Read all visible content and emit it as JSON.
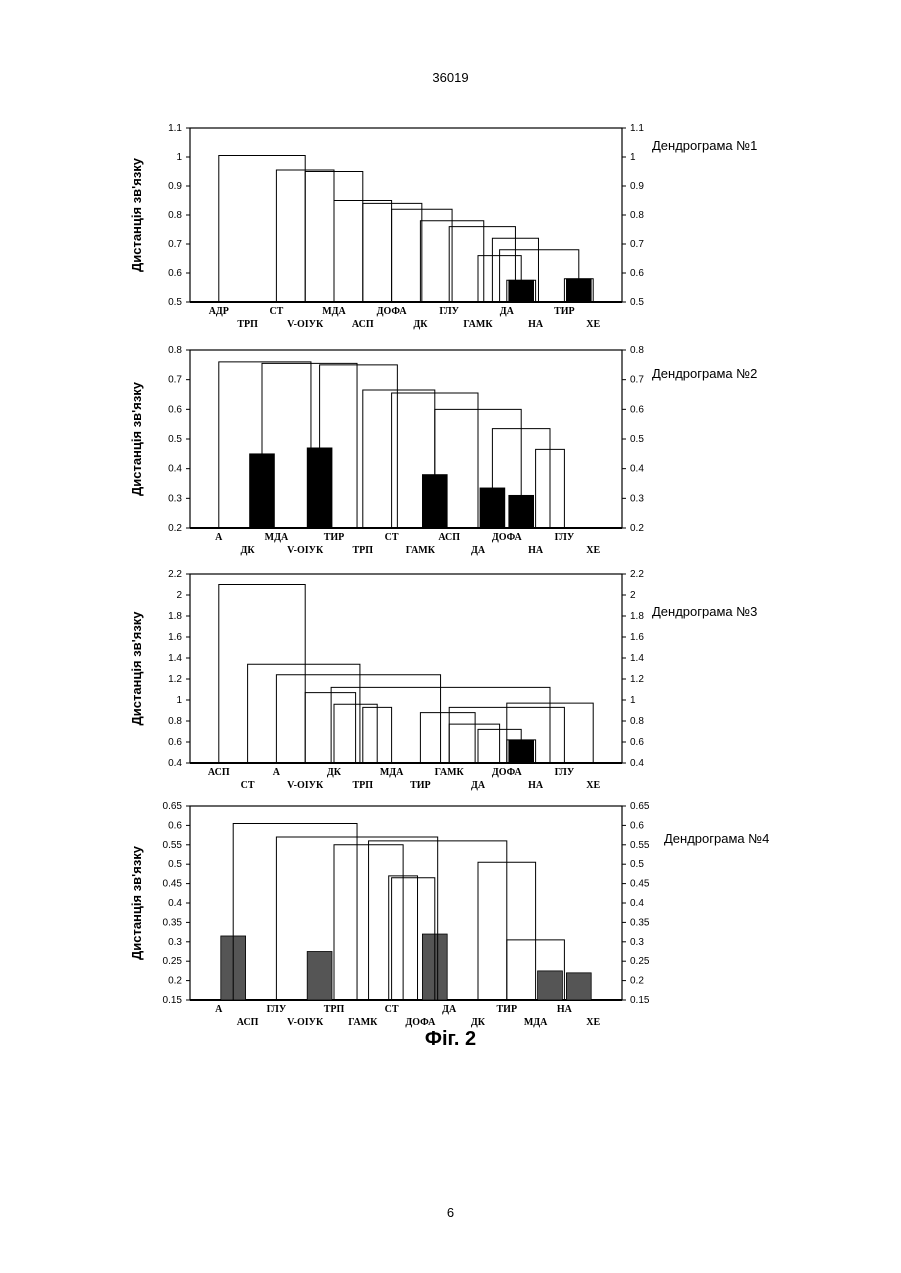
{
  "page": {
    "number_top": "36019",
    "number_bottom": "6",
    "figure_caption": "Фіг. 2"
  },
  "colors": {
    "axes": "#000000",
    "dark_bar": "#000000",
    "gray_bar": "#555555",
    "background": "#ffffff"
  },
  "chart_data": [
    {
      "type": "dendrogram",
      "title": "Дендрограма №1",
      "ylabel": "Дистанція зв'язку",
      "ylim": [
        0.5,
        1.1
      ],
      "yticks": [
        "0.5",
        "0.6",
        "0.7",
        "0.8",
        "0.9",
        "1",
        "1.1"
      ],
      "leaves": [
        "АДР",
        "ТРП",
        "СТ",
        "V-OIУК",
        "МДА",
        "АСП",
        "ДОФА",
        "ДК",
        "ГЛУ",
        "ГАМК",
        "ДА",
        "НА",
        "ТИР",
        "ХЕ"
      ],
      "filled_bars": [
        {
          "from": 11,
          "to": 12,
          "height": 0.575
        },
        {
          "from": 13,
          "to": 14,
          "height": 0.58
        }
      ],
      "merges": [
        {
          "a": 11,
          "b": 12,
          "height": 0.575
        },
        {
          "a": 13,
          "b": 14,
          "height": 0.58
        },
        {
          "a": 10,
          "b": 11.5,
          "height": 0.66
        },
        {
          "a": 10.75,
          "b": 13.5,
          "height": 0.68
        },
        {
          "a": 10.5,
          "b": 12.1,
          "height": 0.72
        },
        {
          "a": 9,
          "b": 11.3,
          "height": 0.76
        },
        {
          "a": 8,
          "b": 10.2,
          "height": 0.78
        },
        {
          "a": 7,
          "b": 9.1,
          "height": 0.82
        },
        {
          "a": 6,
          "b": 8.05,
          "height": 0.84
        },
        {
          "a": 5,
          "b": 7.0,
          "height": 0.85
        },
        {
          "a": 4,
          "b": 6.0,
          "height": 0.95
        },
        {
          "a": 3,
          "b": 5.0,
          "height": 0.955
        },
        {
          "a": 1,
          "b": 4.0,
          "height": 1.005
        }
      ]
    },
    {
      "type": "dendrogram",
      "title": "Дендрограма №2",
      "ylabel": "Дистанція зв'язку",
      "ylim": [
        0.2,
        0.8
      ],
      "yticks": [
        "0.2",
        "0.3",
        "0.4",
        "0.5",
        "0.6",
        "0.7",
        "0.8"
      ],
      "leaves": [
        "А",
        "ДК",
        "МДА",
        "V-OIУК",
        "ТИР",
        "ТРП",
        "СТ",
        "ГАМК",
        "АСП",
        "ДА",
        "ДОФА",
        "НА",
        "ГЛУ",
        "ХЕ"
      ],
      "filled_bars": [
        {
          "from": 2,
          "to": 3,
          "height": 0.45
        },
        {
          "from": 4,
          "to": 5,
          "height": 0.47
        },
        {
          "from": 8,
          "to": 9,
          "height": 0.38
        },
        {
          "from": 10,
          "to": 11,
          "height": 0.335
        },
        {
          "from": 11,
          "to": 12,
          "height": 0.31
        }
      ],
      "merges": [
        {
          "a": 12,
          "b": 13,
          "height": 0.465
        },
        {
          "a": 10.5,
          "b": 12.5,
          "height": 0.535
        },
        {
          "a": 8.5,
          "b": 11.5,
          "height": 0.6
        },
        {
          "a": 7,
          "b": 10.0,
          "height": 0.655
        },
        {
          "a": 6,
          "b": 8.5,
          "height": 0.665
        },
        {
          "a": 4.5,
          "b": 7.2,
          "height": 0.75
        },
        {
          "a": 2.5,
          "b": 5.8,
          "height": 0.755
        },
        {
          "a": 1,
          "b": 4.2,
          "height": 0.76
        }
      ]
    },
    {
      "type": "dendrogram",
      "title": "Дендрограма №3",
      "ylabel": "Дистанція зв'язку",
      "ylim": [
        0.4,
        2.2
      ],
      "yticks": [
        "0.4",
        "0.6",
        "0.8",
        "1",
        "1.2",
        "1.4",
        "1.6",
        "1.8",
        "2",
        "2.2"
      ],
      "leaves": [
        "АСП",
        "СТ",
        "А",
        "V-OIУК",
        "ДК",
        "ТРП",
        "МДА",
        "ТИР",
        "ГАМК",
        "ДА",
        "ДОФА",
        "НА",
        "ГЛУ",
        "ХЕ"
      ],
      "filled_bars": [
        {
          "from": 11,
          "to": 12,
          "height": 0.62
        }
      ],
      "merges": [
        {
          "a": 11,
          "b": 12,
          "height": 0.62
        },
        {
          "a": 10,
          "b": 11.5,
          "height": 0.72
        },
        {
          "a": 9,
          "b": 10.75,
          "height": 0.77
        },
        {
          "a": 8,
          "b": 9.9,
          "height": 0.88
        },
        {
          "a": 6,
          "b": 7,
          "height": 0.93
        },
        {
          "a": 5,
          "b": 6.5,
          "height": 0.96
        },
        {
          "a": 9.0,
          "b": 13,
          "height": 0.93
        },
        {
          "a": 11.0,
          "b": 14,
          "height": 0.97
        },
        {
          "a": 4,
          "b": 5.75,
          "height": 1.07
        },
        {
          "a": 4.9,
          "b": 12.5,
          "height": 1.12
        },
        {
          "a": 3,
          "b": 8.7,
          "height": 1.24
        },
        {
          "a": 2,
          "b": 5.9,
          "height": 1.34
        },
        {
          "a": 1,
          "b": 4.0,
          "height": 2.1
        }
      ]
    },
    {
      "type": "dendrogram",
      "title": "Дендрограма №4",
      "ylabel": "Дистанція зв'язку",
      "ylim": [
        0.15,
        0.65
      ],
      "yticks": [
        "0.15",
        "0.2",
        "0.25",
        "0.3",
        "0.35",
        "0.4",
        "0.45",
        "0.5",
        "0.55",
        "0.6",
        "0.65"
      ],
      "leaves": [
        "А",
        "АСП",
        "ГЛУ",
        "V-OIУК",
        "ТРП",
        "ГАМК",
        "СТ",
        "ДОФА",
        "ДА",
        "ДК",
        "ТИР",
        "МДА",
        "НА",
        "ХЕ"
      ],
      "filled_bars": [
        {
          "from": 1,
          "to": 2,
          "height": 0.315
        },
        {
          "from": 4,
          "to": 5,
          "height": 0.275
        },
        {
          "from": 8,
          "to": 9,
          "height": 0.32
        },
        {
          "from": 12,
          "to": 13,
          "height": 0.225
        },
        {
          "from": 13,
          "to": 14,
          "height": 0.22
        }
      ],
      "merges": [
        {
          "a": 11,
          "b": 13,
          "height": 0.305
        },
        {
          "a": 7,
          "b": 8.5,
          "height": 0.465
        },
        {
          "a": 6.9,
          "b": 7.9,
          "height": 0.47
        },
        {
          "a": 10,
          "b": 12,
          "height": 0.505
        },
        {
          "a": 5,
          "b": 7.4,
          "height": 0.55
        },
        {
          "a": 6.2,
          "b": 11,
          "height": 0.56
        },
        {
          "a": 3,
          "b": 8.6,
          "height": 0.57
        },
        {
          "a": 1.5,
          "b": 5.8,
          "height": 0.605
        }
      ]
    }
  ]
}
